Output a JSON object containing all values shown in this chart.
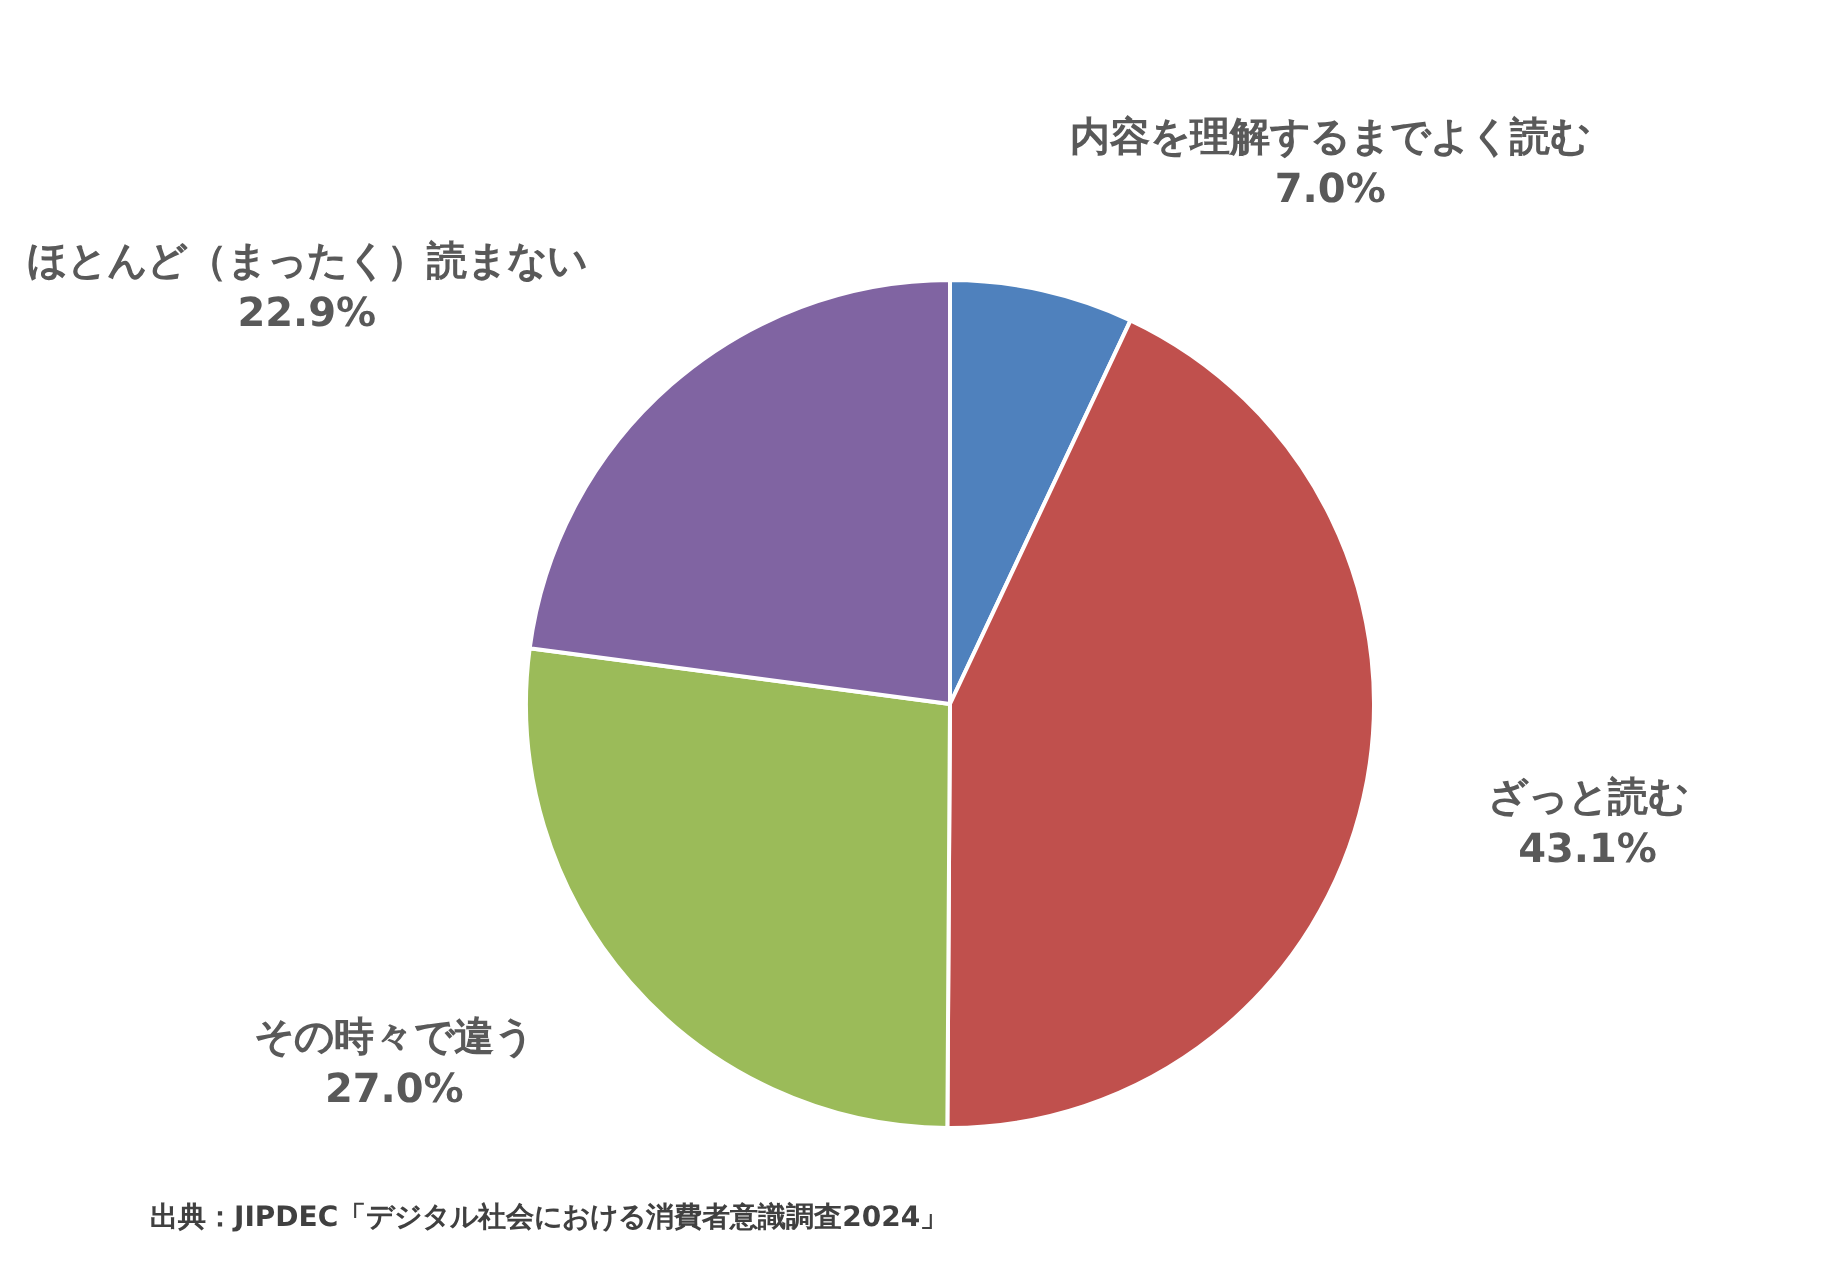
{
  "chart_data": {
    "type": "pie",
    "categories": [
      "内容を理解するまでよく読む",
      "ざっと読む",
      "その時々で違う",
      "ほとんど（まったく）読まない"
    ],
    "values": [
      7.0,
      43.1,
      27.0,
      22.9
    ],
    "value_labels": [
      "7.0%",
      "43.1%",
      "27.0%",
      "22.9%"
    ],
    "colors": [
      "#4f81bd",
      "#c0504d",
      "#9bbb59",
      "#8064a2"
    ],
    "legend": false,
    "annotations": [
      "出典：JIPDEC「デジタル社会における消費者意識調査2024」"
    ]
  }
}
